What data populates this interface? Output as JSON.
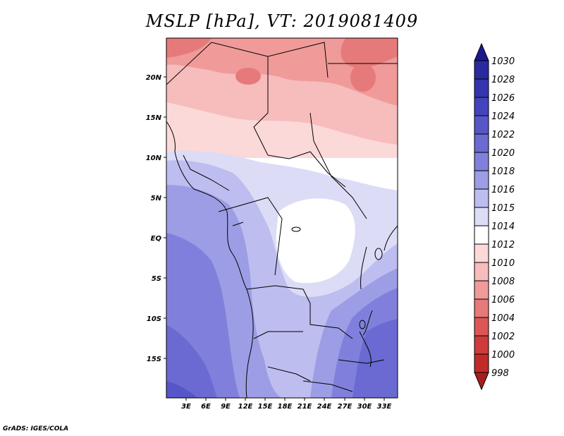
{
  "title": "MSLP [hPa], VT: 2019081409",
  "credit": "GrADS: IGES/COLA",
  "lat_labels": [
    "20N",
    "15N",
    "10N",
    "5N",
    "EQ",
    "5S",
    "10S",
    "15S"
  ],
  "lon_labels": [
    "3E",
    "6E",
    "9E",
    "12E",
    "15E",
    "18E",
    "21E",
    "24E",
    "27E",
    "30E",
    "33E"
  ],
  "colorbar": {
    "levels": [
      "1030",
      "1028",
      "1026",
      "1024",
      "1022",
      "1020",
      "1018",
      "1016",
      "1015",
      "1014",
      "1012",
      "1010",
      "1008",
      "1006",
      "1004",
      "1002",
      "1000",
      "998"
    ],
    "colors": [
      "#1a1a8c",
      "#2a2aa0",
      "#3535b0",
      "#4444bf",
      "#5656c8",
      "#6a6ad2",
      "#8080dc",
      "#9d9de6",
      "#bdbdef",
      "#dcdcf7",
      "#ffffff",
      "#fbd9d9",
      "#f7bcbc",
      "#f09a9a",
      "#e67a7a",
      "#dc5656",
      "#cf3a3a",
      "#c22a2a",
      "#a51f1f"
    ]
  }
}
